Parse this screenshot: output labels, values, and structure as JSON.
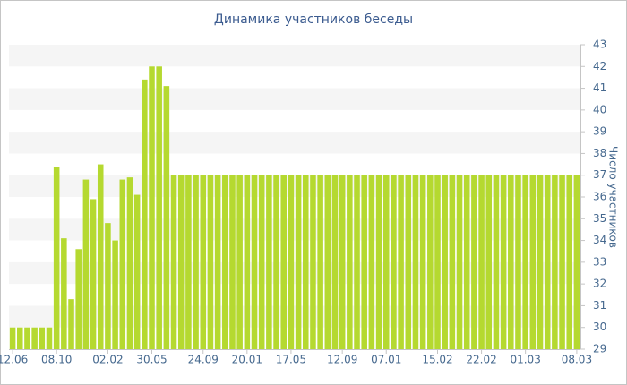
{
  "chart_data": {
    "type": "bar",
    "title": "Динамика участников беседы",
    "y_axis_label": "Число участников",
    "categories": [
      "12.06",
      null,
      null,
      null,
      null,
      null,
      "08.10",
      null,
      null,
      null,
      null,
      null,
      null,
      "02.02",
      null,
      null,
      null,
      null,
      null,
      "30.05",
      null,
      null,
      null,
      null,
      null,
      null,
      "24.09",
      null,
      null,
      null,
      null,
      null,
      "20.01",
      null,
      null,
      null,
      null,
      null,
      "17.05",
      null,
      null,
      null,
      null,
      null,
      null,
      "12.09",
      null,
      null,
      null,
      null,
      null,
      "07.01",
      null,
      null,
      null,
      null,
      null,
      null,
      "15.02",
      null,
      null,
      null,
      null,
      null,
      "22.02",
      null,
      null,
      null,
      null,
      null,
      "01.03",
      null,
      null,
      null,
      null,
      null,
      null,
      "08.03"
    ],
    "values": [
      30,
      30,
      30,
      30,
      30,
      30,
      37.4,
      34.1,
      31.3,
      33.6,
      36.8,
      35.9,
      37.5,
      34.8,
      34.0,
      36.8,
      36.9,
      36.1,
      41.4,
      42,
      42,
      41.1,
      37,
      37,
      37,
      37,
      37,
      37,
      37,
      37,
      37,
      37,
      37,
      37,
      37,
      37,
      37,
      37,
      37,
      37,
      37,
      37,
      37,
      37,
      37,
      37,
      37,
      37,
      37,
      37,
      37,
      37,
      37,
      37,
      37,
      37,
      37,
      37,
      37,
      37,
      37,
      37,
      37,
      37,
      37,
      37,
      37,
      37,
      37,
      37,
      37,
      37,
      37,
      37,
      37,
      37,
      37,
      37
    ],
    "color": "#b5d930",
    "ylim": [
      29,
      43
    ],
    "yticks": [
      29,
      30,
      31,
      32,
      33,
      34,
      35,
      36,
      37,
      38,
      39,
      40,
      41,
      42,
      43
    ],
    "y_axis_side": "right",
    "grid": true
  }
}
